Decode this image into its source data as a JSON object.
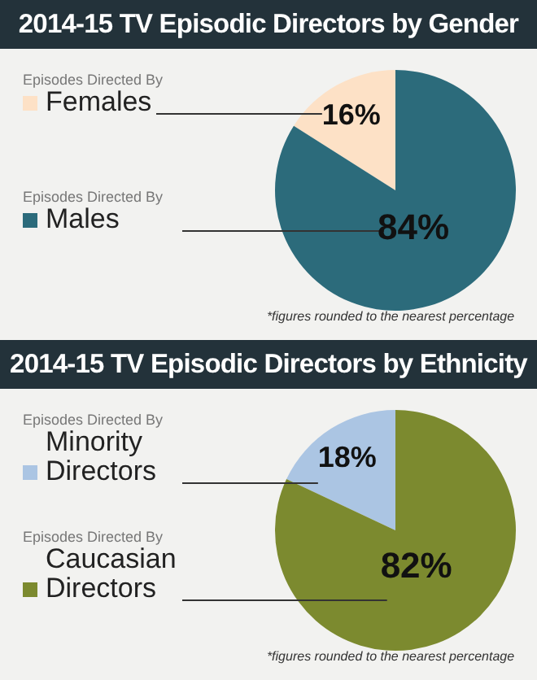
{
  "chart_data": [
    {
      "type": "pie",
      "title": "2014-15 TV Episodic Directors by Gender",
      "categories": [
        "Episodes Directed By\nFemales",
        "Episodes Directed By\nMales"
      ],
      "values": [
        16,
        84
      ],
      "colors": [
        "#fde1c6",
        "#2c6b7b"
      ],
      "value_labels": [
        "16%",
        "84%"
      ],
      "annotations": [
        "*figures rounded to the nearest percentage"
      ]
    },
    {
      "type": "pie",
      "title": "2014-15 TV Episodic Directors by Ethnicity",
      "categories": [
        "Episodes Directed By\nMinority\nDirectors",
        "Episodes Directed By\nCaucasian\nDirectors"
      ],
      "values": [
        18,
        82
      ],
      "colors": [
        "#abc5e3",
        "#7c8a2f"
      ],
      "value_labels": [
        "18%",
        "82%"
      ],
      "annotations": [
        "*figures rounded to the nearest percentage"
      ]
    }
  ]
}
